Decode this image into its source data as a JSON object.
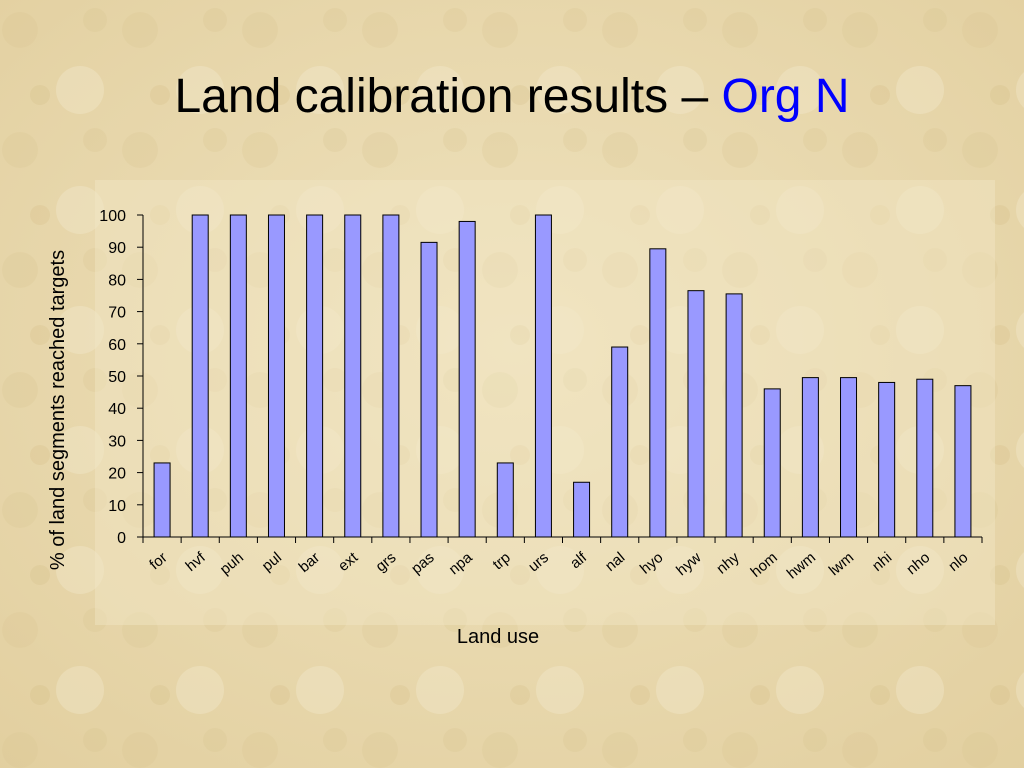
{
  "chart_data": {
    "type": "bar",
    "title": "Land calibration results –",
    "title_highlight": "Org N",
    "x_label": "Land use",
    "y_label": "% of land segments reached targets",
    "categories": [
      "for",
      "hvf",
      "puh",
      "pul",
      "bar",
      "ext",
      "grs",
      "pas",
      "npa",
      "trp",
      "urs",
      "alf",
      "nal",
      "hyo",
      "hyw",
      "nhy",
      "hom",
      "hwm",
      "lwm",
      "nhi",
      "nho",
      "nlo"
    ],
    "values": [
      23,
      100,
      100,
      100,
      100,
      100,
      100,
      91.5,
      98,
      23,
      100,
      17,
      59,
      89.5,
      76.5,
      75.5,
      46,
      49.5,
      49.5,
      48,
      49,
      47
    ],
    "color": "#9999ff",
    "ylim": [
      0,
      100
    ],
    "yticks": [
      0,
      10,
      20,
      30,
      40,
      50,
      60,
      70,
      80,
      90,
      100
    ],
    "grid": false
  }
}
